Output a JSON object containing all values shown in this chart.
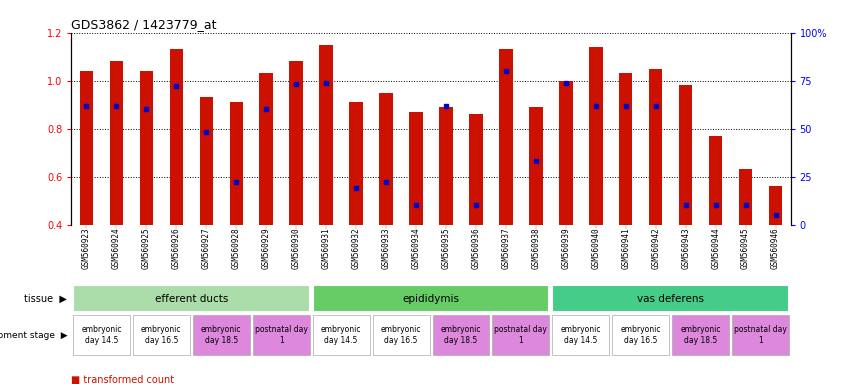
{
  "title": "GDS3862 / 1423779_at",
  "samples": [
    "GSM560923",
    "GSM560924",
    "GSM560925",
    "GSM560926",
    "GSM560927",
    "GSM560928",
    "GSM560929",
    "GSM560930",
    "GSM560931",
    "GSM560932",
    "GSM560933",
    "GSM560934",
    "GSM560935",
    "GSM560936",
    "GSM560937",
    "GSM560938",
    "GSM560939",
    "GSM560940",
    "GSM560941",
    "GSM560942",
    "GSM560943",
    "GSM560944",
    "GSM560945",
    "GSM560946"
  ],
  "transformed_count": [
    1.04,
    1.08,
    1.04,
    1.13,
    0.93,
    0.91,
    1.03,
    1.08,
    1.15,
    0.91,
    0.95,
    0.87,
    0.89,
    0.86,
    1.13,
    0.89,
    1.0,
    1.14,
    1.03,
    1.05,
    0.98,
    0.77,
    0.63,
    0.56
  ],
  "percentile_pct": [
    62,
    62,
    60,
    72,
    48,
    22,
    60,
    73,
    74,
    19,
    22,
    10,
    62,
    10,
    80,
    33,
    74,
    62,
    62,
    62,
    10,
    10,
    10,
    5
  ],
  "ylim_left": [
    0.4,
    1.2
  ],
  "ylim_right": [
    0,
    100
  ],
  "bar_color": "#cc1100",
  "dot_color": "#0000cc",
  "tissue_groups": [
    {
      "label": "efferent ducts",
      "start": 0,
      "end": 7,
      "color": "#aaddaa"
    },
    {
      "label": "epididymis",
      "start": 8,
      "end": 15,
      "color": "#66cc66"
    },
    {
      "label": "vas deferens",
      "start": 16,
      "end": 23,
      "color": "#44cc88"
    }
  ],
  "dev_stage_groups": [
    {
      "label": "embryonic\nday 14.5",
      "start": 0,
      "end": 1,
      "color": "#ffffff"
    },
    {
      "label": "embryonic\nday 16.5",
      "start": 2,
      "end": 3,
      "color": "#ffffff"
    },
    {
      "label": "embryonic\nday 18.5",
      "start": 4,
      "end": 5,
      "color": "#dd88dd"
    },
    {
      "label": "postnatal day\n1",
      "start": 6,
      "end": 7,
      "color": "#dd88dd"
    },
    {
      "label": "embryonic\nday 14.5",
      "start": 8,
      "end": 9,
      "color": "#ffffff"
    },
    {
      "label": "embryonic\nday 16.5",
      "start": 10,
      "end": 11,
      "color": "#ffffff"
    },
    {
      "label": "embryonic\nday 18.5",
      "start": 12,
      "end": 13,
      "color": "#dd88dd"
    },
    {
      "label": "postnatal day\n1",
      "start": 14,
      "end": 15,
      "color": "#dd88dd"
    },
    {
      "label": "embryonic\nday 14.5",
      "start": 16,
      "end": 17,
      "color": "#ffffff"
    },
    {
      "label": "embryonic\nday 16.5",
      "start": 18,
      "end": 19,
      "color": "#ffffff"
    },
    {
      "label": "embryonic\nday 18.5",
      "start": 20,
      "end": 21,
      "color": "#dd88dd"
    },
    {
      "label": "postnatal day\n1",
      "start": 22,
      "end": 23,
      "color": "#dd88dd"
    }
  ],
  "xticklabel_bg": "#cccccc",
  "tissue_row_bg": "#cccccc",
  "dev_row_bg": "#cccccc"
}
